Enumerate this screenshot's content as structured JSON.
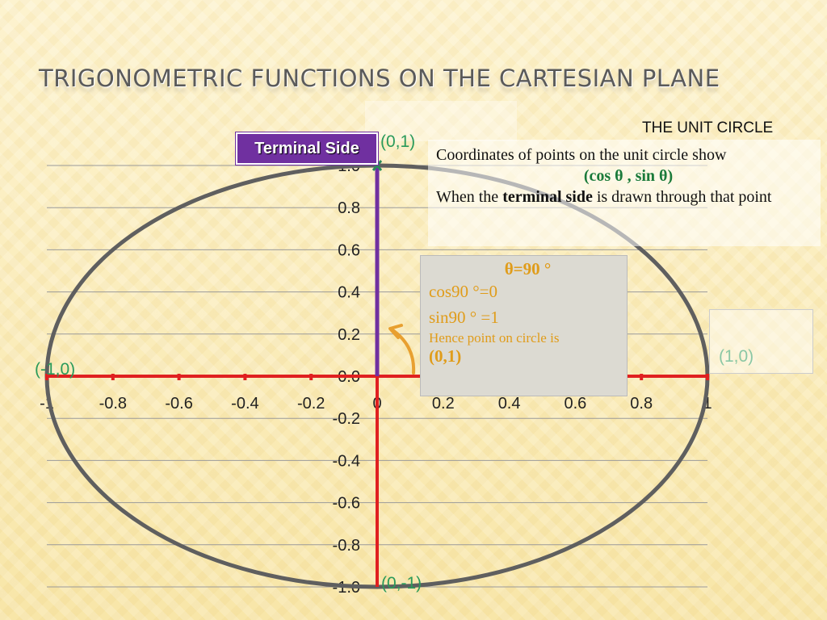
{
  "slide": {
    "title": "TRIGONOMETRIC FUNCTIONS ON THE CARTESIAN PLANE"
  },
  "chart_data": {
    "type": "scatter",
    "title": "",
    "xlabel": "",
    "ylabel": "",
    "xlim": [
      -1,
      1
    ],
    "ylim": [
      -1,
      1
    ],
    "grid": "horizontal",
    "x_ticks": [
      "-1",
      "-0.8",
      "-0.6",
      "-0.4",
      "-0.2",
      "0",
      "0.2",
      "0.4",
      "0.6",
      "0.8",
      "1"
    ],
    "y_ticks": [
      "1.0",
      "0.8",
      "0.6",
      "0.4",
      "0.2",
      "0.0",
      "-0.2",
      "-0.4",
      "-0.6",
      "-0.8",
      "-1.0"
    ],
    "x_tick_values": [
      -1,
      -0.8,
      -0.6,
      -0.4,
      -0.2,
      0,
      0.2,
      0.4,
      0.6,
      0.8,
      1
    ],
    "y_tick_values": [
      1,
      0.8,
      0.6,
      0.4,
      0.2,
      0,
      -0.2,
      -0.4,
      -0.6,
      -0.8,
      -1
    ],
    "series": [
      {
        "shape": "circle",
        "center": [
          0,
          0
        ],
        "radius": 1,
        "color": "#5f5f5f"
      },
      {
        "shape": "segment",
        "from": [
          -1,
          0
        ],
        "to": [
          1,
          0
        ],
        "color": "#e02020"
      },
      {
        "shape": "segment",
        "from": [
          0,
          -1
        ],
        "to": [
          0,
          0
        ],
        "color": "#e02020"
      },
      {
        "shape": "segment",
        "from": [
          0,
          0
        ],
        "to": [
          0,
          1
        ],
        "color": "#7030a0"
      }
    ],
    "points": [
      {
        "x": 0,
        "y": 1,
        "label": "(0,1)"
      },
      {
        "x": 1,
        "y": 0,
        "label": "(1,0)"
      },
      {
        "x": -1,
        "y": 0,
        "label": "(-1,0)"
      },
      {
        "x": 0,
        "y": -1,
        "label": "(0,-1)"
      }
    ],
    "annotations": {
      "terminal_side": "Terminal Side",
      "unit_circle_title": "THE UNIT CIRCLE"
    }
  },
  "coord_box": {
    "line1": "Coordinates of points on the unit circle show",
    "formula": "(cos θ , sin θ)",
    "line3_pre": "When the ",
    "line3_bold": "terminal side",
    "line3_post": " is drawn through that point"
  },
  "theta_box": {
    "head": "θ=90 °",
    "cos_line": "cos90 °=0",
    "sin_line": "sin90 ° =1",
    "hence": "Hence  point on circle is",
    "point": "(0,1)"
  },
  "colors": {
    "circle": "#5f5f5f",
    "axis": "#e02020",
    "terminal": "#7030a0",
    "point_label": "#2a9a5a",
    "theta_text": "#e09c1a",
    "arrow": "#e8a030"
  }
}
